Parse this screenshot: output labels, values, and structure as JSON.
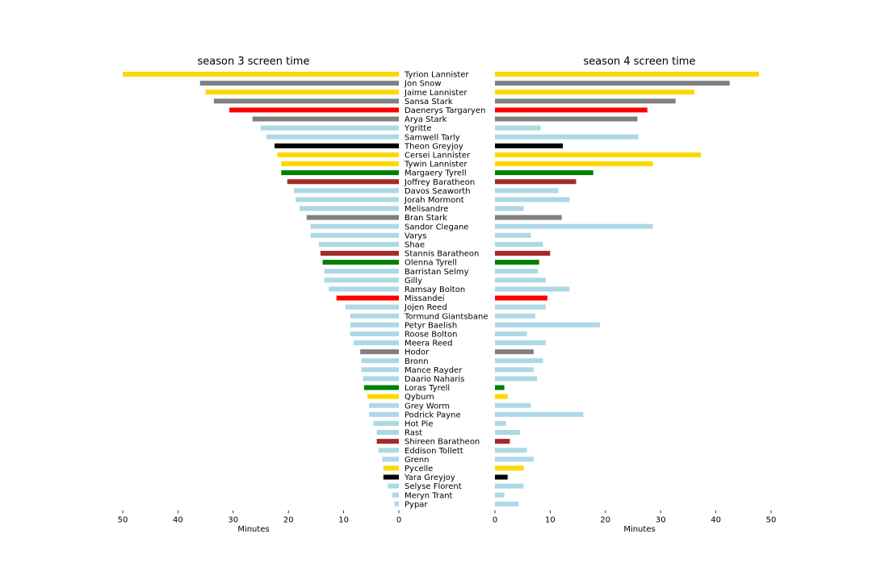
{
  "chart_data": [
    {
      "type": "bar",
      "orientation": "horizontal",
      "direction": "reversed",
      "title": "season 3 screen time",
      "xlabel": "Minutes",
      "ylabel": "",
      "xlim": [
        0,
        50
      ],
      "xticks": [
        50,
        40,
        30,
        20,
        10,
        0
      ],
      "grid": false,
      "categories": [
        "Tyrion Lannister",
        "Jon Snow",
        "Jaime Lannister",
        "Sansa Stark",
        "Daenerys Targaryen",
        "Arya Stark",
        "Ygritte",
        "Samwell Tarly",
        "Theon Greyjoy",
        "Cersei Lannister",
        "Tywin Lannister",
        "Margaery Tyrell",
        "Joffrey Baratheon",
        "Davos Seaworth",
        "Jorah Mormont",
        "Melisandre",
        "Bran Stark",
        "Sandor Clegane",
        "Varys",
        "Shae",
        "Stannis Baratheon",
        "Olenna Tyrell",
        "Barristan Selmy",
        "Gilly",
        "Ramsay Bolton",
        "Missandei",
        "Jojen Reed",
        "Tormund Giantsbane",
        "Petyr Baelish",
        "Roose Bolton",
        "Meera Reed",
        "Hodor",
        "Bronn",
        "Mance Rayder",
        "Daario Naharis",
        "Loras Tyrell",
        "Qyburn",
        "Grey Worm",
        "Podrick Payne",
        "Hot Pie",
        "Rast",
        "Shireen Baratheon",
        "Eddison Tollett",
        "Grenn",
        "Pycelle",
        "Yara Greyjoy",
        "Selyse Florent",
        "Meryn Trant",
        "Pypar"
      ],
      "values": [
        50,
        36,
        35,
        33.5,
        30.7,
        26.5,
        25,
        24,
        22.5,
        22,
        21.3,
        21.3,
        20.2,
        19,
        18.7,
        18,
        16.7,
        16,
        16,
        14.5,
        14.2,
        13.8,
        13.5,
        13.5,
        12.7,
        11.3,
        9.7,
        8.8,
        8.8,
        8.8,
        8.2,
        7,
        6.8,
        6.8,
        6.5,
        6.3,
        5.7,
        5.4,
        5.4,
        4.6,
        4,
        4,
        3.7,
        3,
        2.8,
        2.8,
        2,
        1.2,
        0.8
      ],
      "colors": [
        "#ffd700",
        "#808080",
        "#ffd700",
        "#808080",
        "#ff0000",
        "#808080",
        "#add8e6",
        "#add8e6",
        "#000000",
        "#ffd700",
        "#ffd700",
        "#008000",
        "#a52a2a",
        "#add8e6",
        "#add8e6",
        "#add8e6",
        "#808080",
        "#add8e6",
        "#add8e6",
        "#add8e6",
        "#a52a2a",
        "#008000",
        "#add8e6",
        "#add8e6",
        "#add8e6",
        "#ff0000",
        "#add8e6",
        "#add8e6",
        "#add8e6",
        "#add8e6",
        "#add8e6",
        "#808080",
        "#add8e6",
        "#add8e6",
        "#add8e6",
        "#008000",
        "#ffd700",
        "#add8e6",
        "#add8e6",
        "#add8e6",
        "#add8e6",
        "#a52a2a",
        "#add8e6",
        "#add8e6",
        "#ffd700",
        "#000000",
        "#add8e6",
        "#add8e6",
        "#add8e6"
      ]
    },
    {
      "type": "bar",
      "orientation": "horizontal",
      "direction": "normal",
      "title": "season 4 screen time",
      "xlabel": "Minutes",
      "ylabel": "",
      "xlim": [
        0,
        50
      ],
      "xticks": [
        0,
        10,
        20,
        30,
        40,
        50
      ],
      "grid": false,
      "categories": [
        "Tyrion Lannister",
        "Jon Snow",
        "Jaime Lannister",
        "Sansa Stark",
        "Daenerys Targaryen",
        "Arya Stark",
        "Ygritte",
        "Samwell Tarly",
        "Theon Greyjoy",
        "Cersei Lannister",
        "Tywin Lannister",
        "Margaery Tyrell",
        "Joffrey Baratheon",
        "Davos Seaworth",
        "Jorah Mormont",
        "Melisandre",
        "Bran Stark",
        "Sandor Clegane",
        "Varys",
        "Shae",
        "Stannis Baratheon",
        "Olenna Tyrell",
        "Barristan Selmy",
        "Gilly",
        "Ramsay Bolton",
        "Missandei",
        "Jojen Reed",
        "Tormund Giantsbane",
        "Petyr Baelish",
        "Roose Bolton",
        "Meera Reed",
        "Hodor",
        "Bronn",
        "Mance Rayder",
        "Daario Naharis",
        "Loras Tyrell",
        "Qyburn",
        "Grey Worm",
        "Podrick Payne",
        "Hot Pie",
        "Rast",
        "Shireen Baratheon",
        "Eddison Tollett",
        "Grenn",
        "Pycelle",
        "Yara Greyjoy",
        "Selyse Florent",
        "Meryn Trant",
        "Pypar"
      ],
      "values": [
        47.8,
        42.5,
        36.1,
        32.7,
        27.6,
        25.8,
        8.3,
        26,
        12.3,
        37.3,
        28.6,
        17.8,
        14.7,
        11.5,
        13.5,
        5.2,
        12.1,
        28.6,
        6.5,
        8.7,
        10,
        8,
        7.8,
        9.2,
        13.5,
        9.5,
        9.2,
        7.3,
        19,
        5.8,
        9.2,
        7,
        8.7,
        7,
        7.6,
        1.7,
        2.3,
        6.5,
        16,
        2,
        4.5,
        2.7,
        5.8,
        7,
        5.2,
        2.3,
        5.2,
        1.7,
        4.3
      ],
      "colors": [
        "#ffd700",
        "#808080",
        "#ffd700",
        "#808080",
        "#ff0000",
        "#808080",
        "#add8e6",
        "#add8e6",
        "#000000",
        "#ffd700",
        "#ffd700",
        "#008000",
        "#a52a2a",
        "#add8e6",
        "#add8e6",
        "#add8e6",
        "#808080",
        "#add8e6",
        "#add8e6",
        "#add8e6",
        "#a52a2a",
        "#008000",
        "#add8e6",
        "#add8e6",
        "#add8e6",
        "#ff0000",
        "#add8e6",
        "#add8e6",
        "#add8e6",
        "#add8e6",
        "#add8e6",
        "#808080",
        "#add8e6",
        "#add8e6",
        "#add8e6",
        "#008000",
        "#ffd700",
        "#add8e6",
        "#add8e6",
        "#add8e6",
        "#add8e6",
        "#a52a2a",
        "#add8e6",
        "#add8e6",
        "#ffd700",
        "#000000",
        "#add8e6",
        "#add8e6",
        "#add8e6"
      ]
    }
  ]
}
